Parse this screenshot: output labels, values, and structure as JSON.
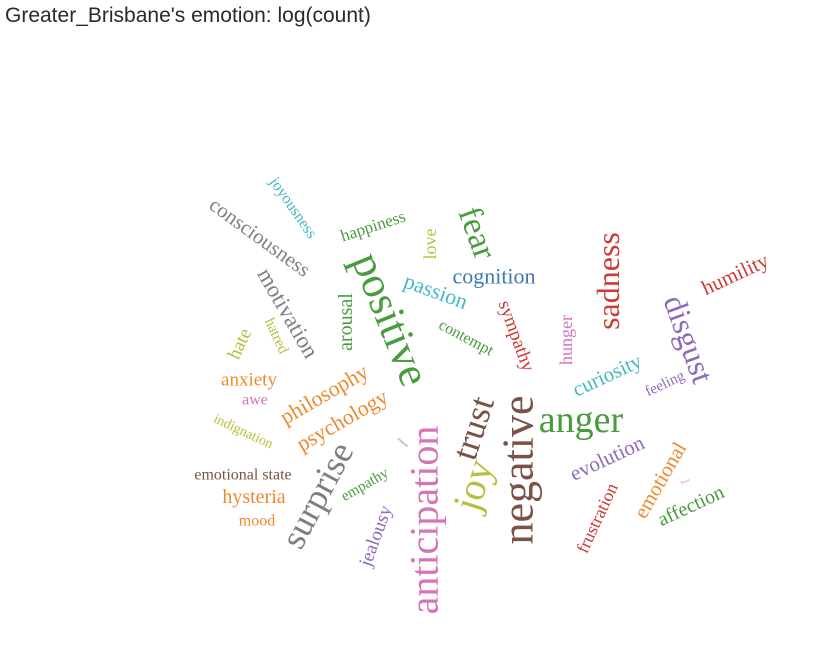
{
  "chart_data": {
    "type": "wordcloud",
    "title": "Greater_Brisbane's emotion: log(count)",
    "words": [
      {
        "text": "positive",
        "color": "#4a9a3f"
      },
      {
        "text": "negative",
        "color": "#7a5247"
      },
      {
        "text": "anticipation",
        "color": "#d674b8"
      },
      {
        "text": "anger",
        "color": "#4a9a3f"
      },
      {
        "text": "trust",
        "color": "#7a5247"
      },
      {
        "text": "joy",
        "color": "#b9be3c"
      },
      {
        "text": "surprise",
        "color": "#7f7f7f"
      },
      {
        "text": "sadness",
        "color": "#cc3b34"
      },
      {
        "text": "fear",
        "color": "#4a9a3f"
      },
      {
        "text": "disgust",
        "color": "#8e6bb8"
      },
      {
        "text": "consciousness",
        "color": "#7f7f7f"
      },
      {
        "text": "motivation",
        "color": "#7f7f7f"
      },
      {
        "text": "philosophy",
        "color": "#ee8a30"
      },
      {
        "text": "psychology",
        "color": "#ee8a30"
      },
      {
        "text": "cognition",
        "color": "#3d78b0"
      },
      {
        "text": "passion",
        "color": "#46b8c4"
      },
      {
        "text": "humility",
        "color": "#cc3b34"
      },
      {
        "text": "curiosity",
        "color": "#46b8c4"
      },
      {
        "text": "evolution",
        "color": "#8e6bb8"
      },
      {
        "text": "emotional",
        "color": "#ee8a30"
      },
      {
        "text": "frustration",
        "color": "#cc3b34"
      },
      {
        "text": "affection",
        "color": "#4a9a3f"
      },
      {
        "text": "jealousy",
        "color": "#8e6bb8"
      },
      {
        "text": "hysteria",
        "color": "#ee8a30"
      },
      {
        "text": "sympathy",
        "color": "#cc3b34"
      },
      {
        "text": "arousal",
        "color": "#4a9a3f"
      },
      {
        "text": "happiness",
        "color": "#4a9a3f"
      },
      {
        "text": "joyousness",
        "color": "#46b8c4"
      },
      {
        "text": "love",
        "color": "#b9be3c"
      },
      {
        "text": "hunger",
        "color": "#d674b8"
      },
      {
        "text": "anxiety",
        "color": "#ee8a30"
      },
      {
        "text": "hate",
        "color": "#b9be3c"
      },
      {
        "text": "hatred",
        "color": "#b9be3c"
      },
      {
        "text": "contempt",
        "color": "#4a9a3f"
      },
      {
        "text": "empathy",
        "color": "#4a9a3f"
      },
      {
        "text": "emotional state",
        "color": "#7a5247"
      },
      {
        "text": "mood",
        "color": "#ee8a30"
      },
      {
        "text": "awe",
        "color": "#d674b8"
      },
      {
        "text": "indignation",
        "color": "#b9be3c"
      },
      {
        "text": "feeling",
        "color": "#8e6bb8"
      },
      {
        "text": "remorse",
        "color": "#7a5247"
      },
      {
        "text": "desire",
        "color": "#d674b8"
      }
    ]
  }
}
